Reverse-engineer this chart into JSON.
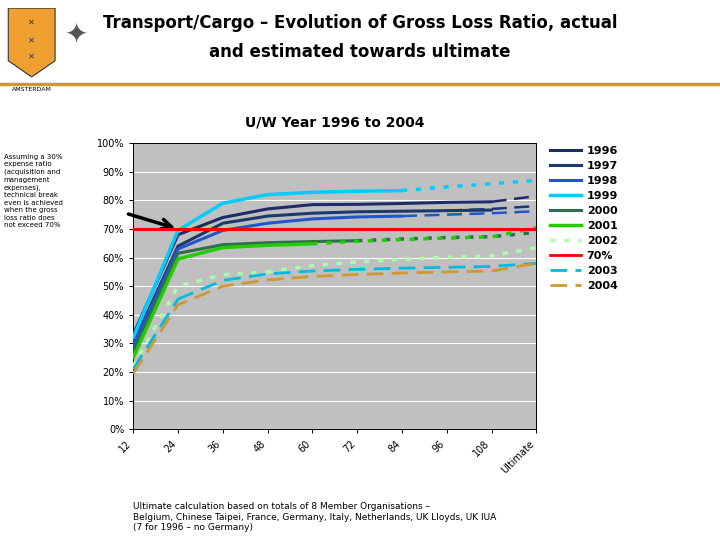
{
  "title_line1": "Transport/Cargo – Evolution of Gross Loss Ratio, actual",
  "title_line2": "and estimated towards ultimate",
  "subtitle": "U/W Year 1996 to 2004",
  "background_color": "#ffffff",
  "plot_bg_color": "#c0c0c0",
  "separator_color": "#d4a017",
  "x_labels": [
    "12",
    "24",
    "36",
    "48",
    "60",
    "72",
    "84",
    "96",
    "108",
    "Ultimate"
  ],
  "x_numeric": [
    12,
    24,
    36,
    48,
    60,
    72,
    84,
    96,
    108,
    120
  ],
  "ylim": [
    0,
    1.0
  ],
  "yticks": [
    0.0,
    0.1,
    0.2,
    0.3,
    0.4,
    0.5,
    0.6,
    0.7,
    0.8,
    0.9,
    1.0
  ],
  "ytick_labels": [
    "0%",
    "10%",
    "20%",
    "30%",
    "40%",
    "50%",
    "60%",
    "70%",
    "80%",
    "90%",
    "100%"
  ],
  "reference_line_y": 0.7,
  "reference_line_color": "#ff0000",
  "series": [
    {
      "year": "1996",
      "color": "#1f2a6b",
      "linestyle": "solid",
      "linewidth": 2.2,
      "values": [
        0.33,
        0.68,
        0.74,
        0.77,
        0.785,
        0.786,
        0.789,
        0.793,
        0.795,
        null
      ]
    },
    {
      "year": "1997",
      "color": "#1a3a6b",
      "linestyle": "solid",
      "linewidth": 2.2,
      "values": [
        0.3,
        0.64,
        0.72,
        0.745,
        0.755,
        0.76,
        0.762,
        0.764,
        0.766,
        null
      ]
    },
    {
      "year": "1998",
      "color": "#2255cc",
      "linestyle": "solid",
      "linewidth": 2.2,
      "values": [
        0.29,
        0.63,
        0.695,
        0.72,
        0.735,
        0.742,
        0.745,
        null,
        null,
        null
      ]
    },
    {
      "year": "1999",
      "color": "#00ccff",
      "linestyle": "solid",
      "linewidth": 2.5,
      "values": [
        0.32,
        0.695,
        0.79,
        0.82,
        0.828,
        0.832,
        0.834,
        null,
        null,
        null
      ]
    },
    {
      "year": "2000",
      "color": "#2d6e4e",
      "linestyle": "solid",
      "linewidth": 2.2,
      "values": [
        0.27,
        0.615,
        0.645,
        0.652,
        0.656,
        0.659,
        null,
        null,
        null,
        null
      ]
    },
    {
      "year": "2001",
      "color": "#22cc00",
      "linestyle": "solid",
      "linewidth": 2.5,
      "values": [
        0.25,
        0.595,
        0.635,
        0.643,
        0.648,
        null,
        null,
        null,
        null,
        null
      ]
    },
    {
      "year": "2002",
      "color": "#aaffaa",
      "linestyle": "dotted",
      "linewidth": 2.5,
      "values": [
        0.22,
        0.5,
        0.54,
        0.55,
        null,
        null,
        null,
        null,
        null,
        null
      ]
    },
    {
      "year": "2003",
      "color": "#00bbdd",
      "linestyle": "dashed",
      "linewidth": 2.0,
      "values": [
        0.21,
        0.455,
        null,
        null,
        null,
        null,
        null,
        null,
        null,
        null
      ]
    },
    {
      "year": "2004",
      "color": "#cc9933",
      "linestyle": "dashed",
      "linewidth": 2.0,
      "values": [
        0.195,
        null,
        null,
        null,
        null,
        null,
        null,
        null,
        null,
        null
      ]
    }
  ],
  "estimated_series": [
    {
      "year": "1996",
      "color": "#1f2a6b",
      "linestyle": "dashed",
      "linewidth": 1.8,
      "values": [
        null,
        null,
        null,
        null,
        null,
        null,
        null,
        null,
        0.795,
        0.815
      ]
    },
    {
      "year": "1997",
      "color": "#1a3a6b",
      "linestyle": "dashed",
      "linewidth": 1.8,
      "values": [
        null,
        null,
        null,
        null,
        null,
        null,
        null,
        0.764,
        0.77,
        0.78
      ]
    },
    {
      "year": "1998",
      "color": "#2255cc",
      "linestyle": "dashed",
      "linewidth": 1.8,
      "values": [
        null,
        null,
        null,
        null,
        null,
        null,
        0.745,
        0.75,
        0.755,
        0.762
      ]
    },
    {
      "year": "1999",
      "color": "#00ccff",
      "linestyle": "dotted",
      "linewidth": 2.5,
      "values": [
        null,
        null,
        null,
        null,
        null,
        null,
        0.834,
        0.847,
        0.858,
        0.87
      ]
    },
    {
      "year": "2000",
      "color": "#2d6e4e",
      "linestyle": "dotted",
      "linewidth": 2.5,
      "values": [
        null,
        null,
        null,
        null,
        null,
        0.659,
        0.665,
        0.67,
        0.673,
        0.688
      ]
    },
    {
      "year": "2001",
      "color": "#22cc00",
      "linestyle": "dotted",
      "linewidth": 2.5,
      "values": [
        null,
        null,
        null,
        null,
        0.648,
        0.657,
        0.663,
        0.668,
        0.672,
        0.705
      ]
    },
    {
      "year": "2002",
      "color": "#aaffaa",
      "linestyle": "dotted",
      "linewidth": 2.5,
      "values": [
        null,
        null,
        null,
        0.55,
        0.572,
        0.585,
        0.594,
        0.601,
        0.606,
        0.635
      ]
    },
    {
      "year": "2003",
      "color": "#00bbdd",
      "linestyle": "dashed",
      "linewidth": 2.0,
      "values": [
        null,
        0.455,
        0.52,
        0.543,
        0.553,
        0.559,
        0.563,
        0.566,
        0.569,
        0.58
      ]
    },
    {
      "year": "2004",
      "color": "#cc9933",
      "linestyle": "dashed",
      "linewidth": 2.0,
      "values": [
        0.195,
        0.435,
        0.5,
        0.522,
        0.534,
        0.541,
        0.546,
        0.55,
        0.553,
        0.58
      ]
    }
  ],
  "legend_entries": [
    {
      "label": "1996",
      "color": "#1f2a6b",
      "linestyle": "solid",
      "linewidth": 2.2
    },
    {
      "label": "1997",
      "color": "#1a3a6b",
      "linestyle": "solid",
      "linewidth": 2.2
    },
    {
      "label": "1998",
      "color": "#2255cc",
      "linestyle": "solid",
      "linewidth": 2.2
    },
    {
      "label": "1999",
      "color": "#00ccff",
      "linestyle": "solid",
      "linewidth": 2.5
    },
    {
      "label": "2000",
      "color": "#2d6e4e",
      "linestyle": "solid",
      "linewidth": 2.2
    },
    {
      "label": "2001",
      "color": "#22cc00",
      "linestyle": "solid",
      "linewidth": 2.5
    },
    {
      "label": "2002",
      "color": "#aaffaa",
      "linestyle": "dotted",
      "linewidth": 2.5
    },
    {
      "label": "70%",
      "color": "#ff0000",
      "linestyle": "solid",
      "linewidth": 2.0
    },
    {
      "label": "2003",
      "color": "#00bbdd",
      "linestyle": "dashed",
      "linewidth": 2.0
    },
    {
      "label": "2004",
      "color": "#cc9933",
      "linestyle": "dashed",
      "linewidth": 2.0
    }
  ],
  "annotation_text": "Assuming a 30%\nexpense ratio\n(acquisition and\nmanagement\nexpenses),\ntechnical break\neven is achieved\nwhen the gross\nloss ratio does\nnot exceed 70%",
  "footer_text": "Ultimate calculation based on totals of 8 Member Organisations –\nBelgium, Chinese Taipei, France, Germany, Italy, Netherlands, UK Lloyds, UK IUA\n(7 for 1996 – no Germany)"
}
